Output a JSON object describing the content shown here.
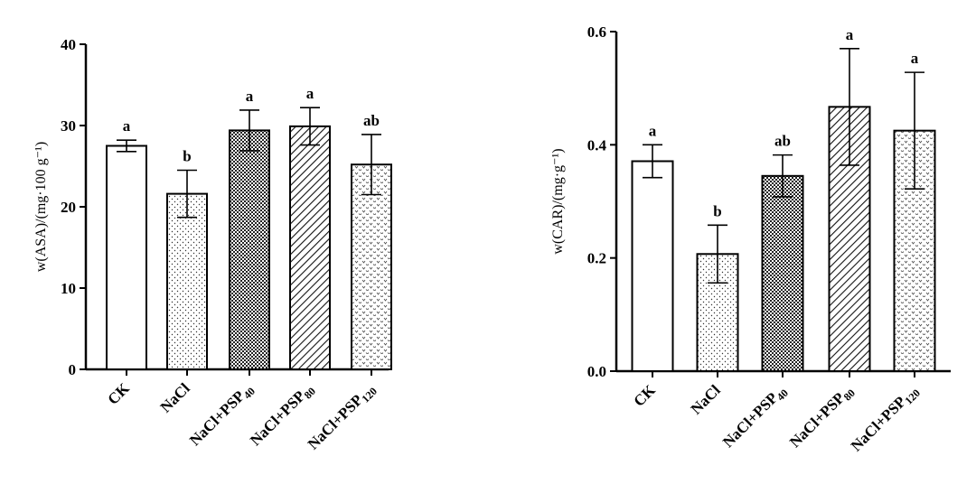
{
  "colors": {
    "ink": "#000000",
    "background": "#ffffff"
  },
  "chart_data": [
    {
      "type": "bar",
      "ylabel": "w(ASA)/(mg·100 g⁻¹)",
      "ylim": [
        0,
        40
      ],
      "yticks": [
        0,
        10,
        20,
        30,
        40
      ],
      "categories": [
        {
          "base": "CK",
          "sub": ""
        },
        {
          "base": "NaCl",
          "sub": ""
        },
        {
          "base": "NaCl+PSP",
          "sub": "40"
        },
        {
          "base": "NaCl+PSP",
          "sub": "80"
        },
        {
          "base": "NaCl+PSP",
          "sub": "120"
        }
      ],
      "values": [
        27.5,
        21.6,
        29.4,
        29.9,
        25.2
      ],
      "errors": [
        0.7,
        2.9,
        2.5,
        2.3,
        3.7
      ],
      "significance": [
        "a",
        "b",
        "a",
        "a",
        "ab"
      ],
      "patterns": [
        "plain",
        "dots",
        "checker",
        "hatch",
        "chevron"
      ]
    },
    {
      "type": "bar",
      "ylabel": "w(CAR)/(mg·g⁻¹)",
      "ylim": [
        0,
        0.6
      ],
      "yticks": [
        "0.0",
        "0.2",
        "0.4",
        "0.6"
      ],
      "categories": [
        {
          "base": "CK",
          "sub": ""
        },
        {
          "base": "NaCl",
          "sub": ""
        },
        {
          "base": "NaCl+PSP",
          "sub": "40"
        },
        {
          "base": "NaCl+PSP",
          "sub": "80"
        },
        {
          "base": "NaCl+PSP",
          "sub": "120"
        }
      ],
      "values": [
        0.371,
        0.207,
        0.345,
        0.467,
        0.425
      ],
      "errors": [
        0.029,
        0.051,
        0.037,
        0.103,
        0.103
      ],
      "significance": [
        "a",
        "b",
        "ab",
        "a",
        "a"
      ],
      "patterns": [
        "plain",
        "dots",
        "checker",
        "hatch",
        "chevron"
      ]
    }
  ]
}
